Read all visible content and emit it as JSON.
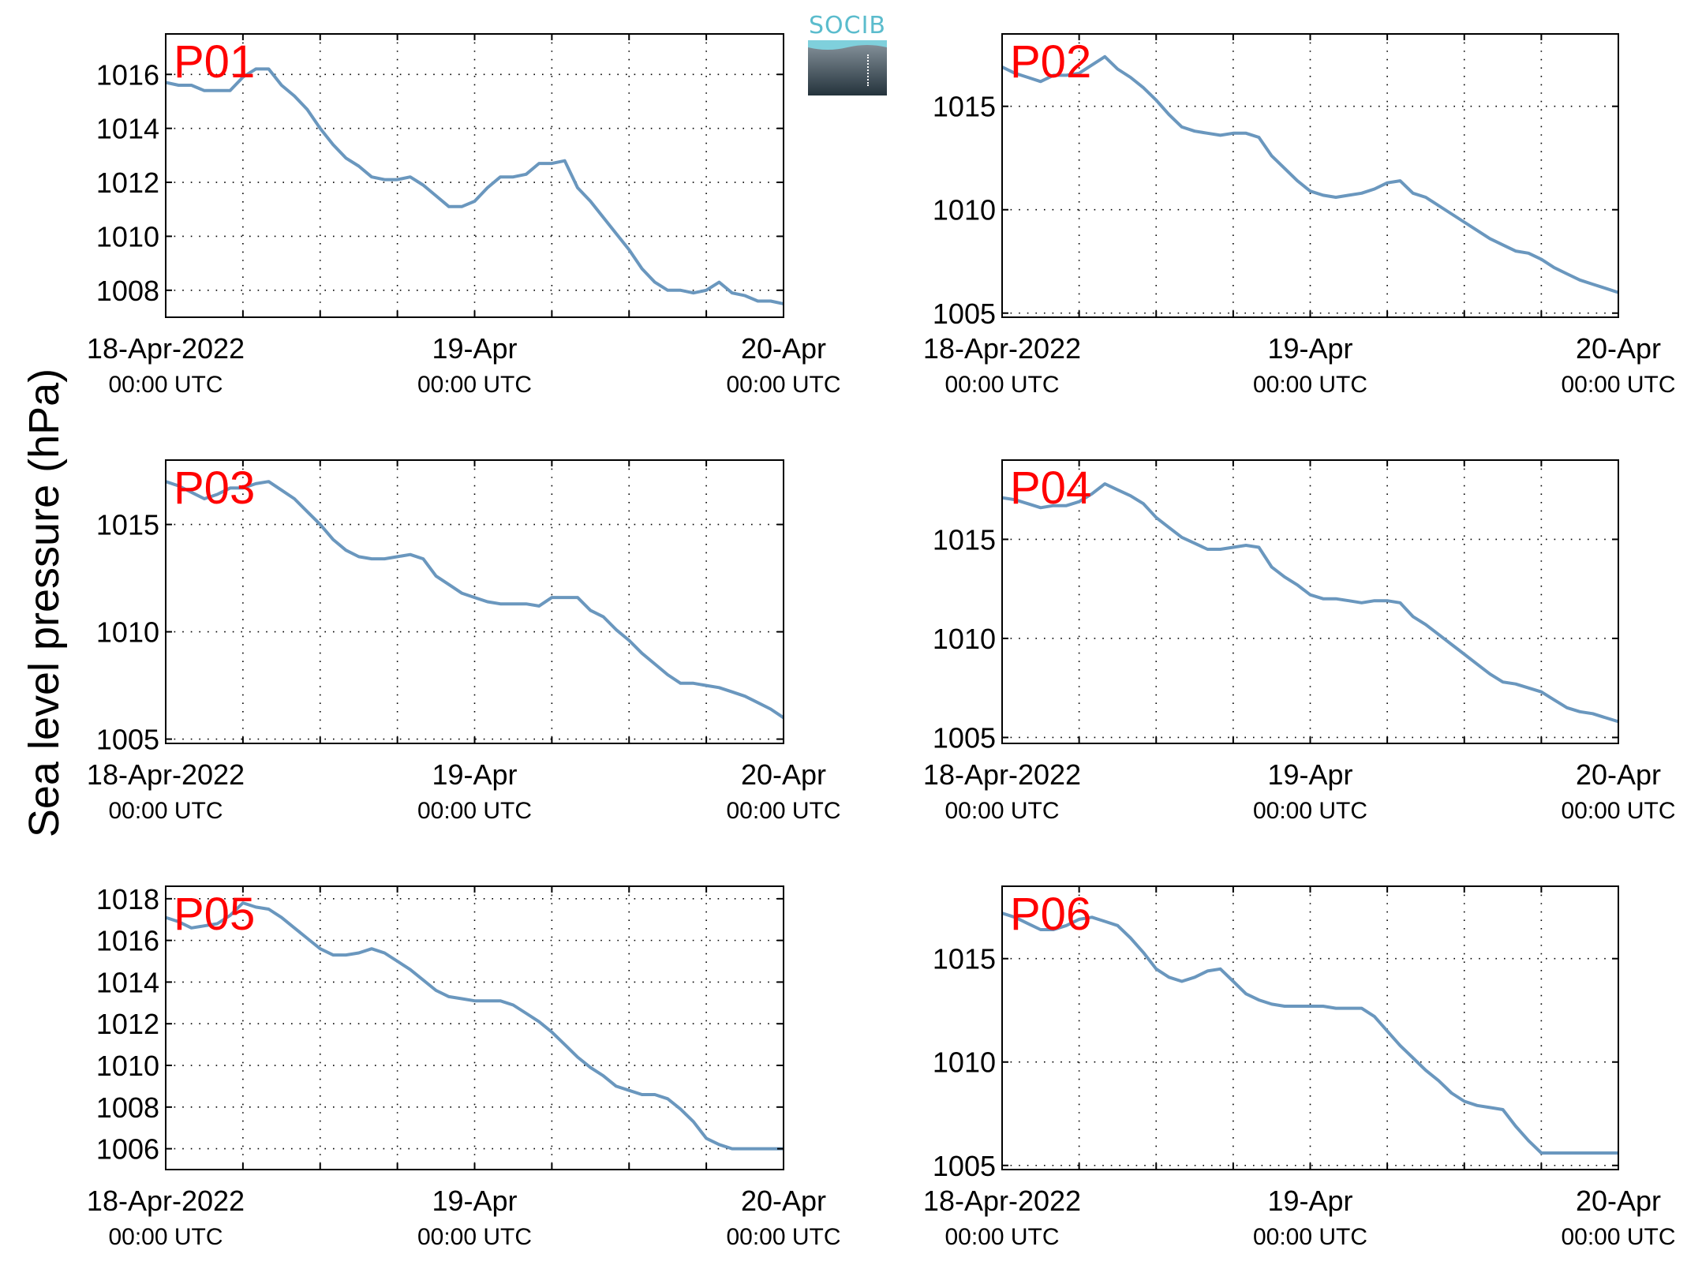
{
  "figure": {
    "ylabel": "Sea level pressure (hPa)",
    "logo_text": "SOCIB"
  },
  "colors": {
    "line": "#6a97be",
    "station_label": "#ff0000",
    "logo_text": "#5bbccd",
    "logo_wave": "#7fd0dc",
    "axis": "#000000",
    "grid": "#000000"
  },
  "chart_data": [
    {
      "type": "line",
      "label": "P01",
      "xlim": [
        0,
        48
      ],
      "ylim": [
        1007,
        1017.5
      ],
      "yticks": [
        1008,
        1010,
        1012,
        1014,
        1016
      ],
      "xticks": [
        {
          "t": 0,
          "line1": "18-Apr-2022",
          "line2": "00:00 UTC"
        },
        {
          "t": 24,
          "line1": "19-Apr",
          "line2": "00:00 UTC"
        },
        {
          "t": 48,
          "line1": "20-Apr",
          "line2": "00:00 UTC"
        }
      ],
      "x_unit": "hours since 18-Apr-2022 00:00 UTC",
      "grid": true,
      "x": [
        0,
        1,
        2,
        3,
        4,
        5,
        6,
        7,
        8,
        9,
        10,
        11,
        12,
        13,
        14,
        15,
        16,
        17,
        18,
        19,
        20,
        21,
        22,
        23,
        24,
        25,
        26,
        27,
        28,
        29,
        30,
        31,
        32,
        33,
        34,
        35,
        36,
        37,
        38,
        39,
        40,
        41,
        42,
        43,
        44,
        45,
        46,
        47,
        48
      ],
      "y": [
        1015.7,
        1015.6,
        1015.6,
        1015.4,
        1015.4,
        1015.4,
        1015.9,
        1016.2,
        1016.2,
        1015.6,
        1015.2,
        1014.7,
        1014,
        1013.4,
        1012.9,
        1012.6,
        1012.2,
        1012.1,
        1012.1,
        1012.2,
        1011.9,
        1011.5,
        1011.1,
        1011.1,
        1011.3,
        1011.8,
        1012.2,
        1012.2,
        1012.3,
        1012.7,
        1012.7,
        1012.8,
        1011.8,
        1011.3,
        1010.7,
        1010.1,
        1009.5,
        1008.8,
        1008.3,
        1008,
        1008,
        1007.9,
        1008,
        1008.3,
        1007.9,
        1007.8,
        1007.6,
        1007.6,
        1007.5
      ]
    },
    {
      "type": "line",
      "label": "P02",
      "xlim": [
        0,
        48
      ],
      "ylim": [
        1004.8,
        1018.5
      ],
      "yticks": [
        1005,
        1010,
        1015
      ],
      "xticks": [
        {
          "t": 0,
          "line1": "18-Apr-2022",
          "line2": "00:00 UTC"
        },
        {
          "t": 24,
          "line1": "19-Apr",
          "line2": "00:00 UTC"
        },
        {
          "t": 48,
          "line1": "20-Apr",
          "line2": "00:00 UTC"
        }
      ],
      "x_unit": "hours since 18-Apr-2022 00:00 UTC",
      "grid": true,
      "x": [
        0,
        1,
        2,
        3,
        4,
        5,
        6,
        7,
        8,
        9,
        10,
        11,
        12,
        13,
        14,
        15,
        16,
        17,
        18,
        19,
        20,
        21,
        22,
        23,
        24,
        25,
        26,
        27,
        28,
        29,
        30,
        31,
        32,
        33,
        34,
        35,
        36,
        37,
        38,
        39,
        40,
        41,
        42,
        43,
        44,
        45,
        46,
        47,
        48
      ],
      "y": [
        1016.9,
        1016.6,
        1016.4,
        1016.2,
        1016.5,
        1016.5,
        1016.6,
        1017,
        1017.4,
        1016.8,
        1016.4,
        1015.9,
        1015.3,
        1014.6,
        1014,
        1013.8,
        1013.7,
        1013.6,
        1013.7,
        1013.7,
        1013.5,
        1012.6,
        1012,
        1011.4,
        1010.9,
        1010.7,
        1010.6,
        1010.7,
        1010.8,
        1011,
        1011.3,
        1011.4,
        1010.8,
        1010.6,
        1010.2,
        1009.8,
        1009.4,
        1009,
        1008.6,
        1008.3,
        1008,
        1007.9,
        1007.6,
        1007.2,
        1006.9,
        1006.6,
        1006.4,
        1006.2,
        1006
      ]
    },
    {
      "type": "line",
      "label": "P03",
      "xlim": [
        0,
        48
      ],
      "ylim": [
        1004.8,
        1018
      ],
      "yticks": [
        1005,
        1010,
        1015
      ],
      "xticks": [
        {
          "t": 0,
          "line1": "18-Apr-2022",
          "line2": "00:00 UTC"
        },
        {
          "t": 24,
          "line1": "19-Apr",
          "line2": "00:00 UTC"
        },
        {
          "t": 48,
          "line1": "20-Apr",
          "line2": "00:00 UTC"
        }
      ],
      "x_unit": "hours since 18-Apr-2022 00:00 UTC",
      "grid": true,
      "x": [
        0,
        1,
        2,
        3,
        4,
        5,
        6,
        7,
        8,
        9,
        10,
        11,
        12,
        13,
        14,
        15,
        16,
        17,
        18,
        19,
        20,
        21,
        22,
        23,
        24,
        25,
        26,
        27,
        28,
        29,
        30,
        31,
        32,
        33,
        34,
        35,
        36,
        37,
        38,
        39,
        40,
        41,
        42,
        43,
        44,
        45,
        46,
        47,
        48
      ],
      "y": [
        1017,
        1016.8,
        1016.5,
        1016.2,
        1016.4,
        1016.7,
        1016.7,
        1016.9,
        1017,
        1016.6,
        1016.2,
        1015.6,
        1015,
        1014.3,
        1013.8,
        1013.5,
        1013.4,
        1013.4,
        1013.5,
        1013.6,
        1013.4,
        1012.6,
        1012.2,
        1011.8,
        1011.6,
        1011.4,
        1011.3,
        1011.3,
        1011.3,
        1011.2,
        1011.6,
        1011.6,
        1011.6,
        1011,
        1010.7,
        1010.1,
        1009.6,
        1009,
        1008.5,
        1008,
        1007.6,
        1007.6,
        1007.5,
        1007.4,
        1007.2,
        1007,
        1006.7,
        1006.4,
        1006
      ]
    },
    {
      "type": "line",
      "label": "P04",
      "xlim": [
        0,
        48
      ],
      "ylim": [
        1004.7,
        1019
      ],
      "yticks": [
        1005,
        1010,
        1015
      ],
      "xticks": [
        {
          "t": 0,
          "line1": "18-Apr-2022",
          "line2": "00:00 UTC"
        },
        {
          "t": 24,
          "line1": "19-Apr",
          "line2": "00:00 UTC"
        },
        {
          "t": 48,
          "line1": "20-Apr",
          "line2": "00:00 UTC"
        }
      ],
      "x_unit": "hours since 18-Apr-2022 00:00 UTC",
      "grid": true,
      "x": [
        0,
        1,
        2,
        3,
        4,
        5,
        6,
        7,
        8,
        9,
        10,
        11,
        12,
        13,
        14,
        15,
        16,
        17,
        18,
        19,
        20,
        21,
        22,
        23,
        24,
        25,
        26,
        27,
        28,
        29,
        30,
        31,
        32,
        33,
        34,
        35,
        36,
        37,
        38,
        39,
        40,
        41,
        42,
        43,
        44,
        45,
        46,
        47,
        48
      ],
      "y": [
        1017.1,
        1017,
        1016.8,
        1016.6,
        1016.7,
        1016.7,
        1016.9,
        1017.3,
        1017.8,
        1017.5,
        1017.2,
        1016.8,
        1016.1,
        1015.6,
        1015.1,
        1014.8,
        1014.5,
        1014.5,
        1014.6,
        1014.7,
        1014.6,
        1013.6,
        1013.1,
        1012.7,
        1012.2,
        1012,
        1012,
        1011.9,
        1011.8,
        1011.9,
        1011.9,
        1011.8,
        1011.1,
        1010.7,
        1010.2,
        1009.7,
        1009.2,
        1008.7,
        1008.2,
        1007.8,
        1007.7,
        1007.5,
        1007.3,
        1006.9,
        1006.5,
        1006.3,
        1006.2,
        1006,
        1005.8
      ]
    },
    {
      "type": "line",
      "label": "P05",
      "xlim": [
        0,
        48
      ],
      "ylim": [
        1005,
        1018.6
      ],
      "yticks": [
        1006,
        1008,
        1010,
        1012,
        1014,
        1016,
        1018
      ],
      "xticks": [
        {
          "t": 0,
          "line1": "18-Apr-2022",
          "line2": "00:00 UTC"
        },
        {
          "t": 24,
          "line1": "19-Apr",
          "line2": "00:00 UTC"
        },
        {
          "t": 48,
          "line1": "20-Apr",
          "line2": "00:00 UTC"
        }
      ],
      "x_unit": "hours since 18-Apr-2022 00:00 UTC",
      "grid": true,
      "x": [
        0,
        1,
        2,
        3,
        4,
        5,
        6,
        7,
        8,
        9,
        10,
        11,
        12,
        13,
        14,
        15,
        16,
        17,
        18,
        19,
        20,
        21,
        22,
        23,
        24,
        25,
        26,
        27,
        28,
        29,
        30,
        31,
        32,
        33,
        34,
        35,
        36,
        37,
        38,
        39,
        40,
        41,
        42,
        43,
        44,
        45,
        46,
        47,
        48
      ],
      "y": [
        1017.1,
        1016.9,
        1016.6,
        1016.7,
        1016.8,
        1017.2,
        1017.8,
        1017.6,
        1017.5,
        1017.1,
        1016.6,
        1016.1,
        1015.6,
        1015.3,
        1015.3,
        1015.4,
        1015.6,
        1015.4,
        1015,
        1014.6,
        1014.1,
        1013.6,
        1013.3,
        1013.2,
        1013.1,
        1013.1,
        1013.1,
        1012.9,
        1012.5,
        1012.1,
        1011.6,
        1011,
        1010.4,
        1009.9,
        1009.5,
        1009,
        1008.8,
        1008.6,
        1008.6,
        1008.4,
        1007.9,
        1007.3,
        1006.5,
        1006.2,
        1006,
        1006,
        1006,
        1006,
        1006
      ]
    },
    {
      "type": "line",
      "label": "P06",
      "xlim": [
        0,
        48
      ],
      "ylim": [
        1004.8,
        1018.5
      ],
      "yticks": [
        1005,
        1010,
        1015
      ],
      "xticks": [
        {
          "t": 0,
          "line1": "18-Apr-2022",
          "line2": "00:00 UTC"
        },
        {
          "t": 24,
          "line1": "19-Apr",
          "line2": "00:00 UTC"
        },
        {
          "t": 48,
          "line1": "20-Apr",
          "line2": "00:00 UTC"
        }
      ],
      "x_unit": "hours since 18-Apr-2022 00:00 UTC",
      "grid": true,
      "x": [
        0,
        1,
        2,
        3,
        4,
        5,
        6,
        7,
        8,
        9,
        10,
        11,
        12,
        13,
        14,
        15,
        16,
        17,
        18,
        19,
        20,
        21,
        22,
        23,
        24,
        25,
        26,
        27,
        28,
        29,
        30,
        31,
        32,
        33,
        34,
        35,
        36,
        37,
        38,
        39,
        40,
        41,
        42,
        43,
        44,
        45,
        46,
        47,
        48
      ],
      "y": [
        1017.2,
        1017,
        1016.7,
        1016.4,
        1016.4,
        1016.6,
        1016.9,
        1017,
        1016.8,
        1016.6,
        1016,
        1015.3,
        1014.5,
        1014.1,
        1013.9,
        1014.1,
        1014.4,
        1014.5,
        1013.9,
        1013.3,
        1013,
        1012.8,
        1012.7,
        1012.7,
        1012.7,
        1012.7,
        1012.6,
        1012.6,
        1012.6,
        1012.2,
        1011.5,
        1010.8,
        1010.2,
        1009.6,
        1009.1,
        1008.5,
        1008.1,
        1007.9,
        1007.8,
        1007.7,
        1006.9,
        1006.2,
        1005.6,
        1005.6,
        1005.6,
        1005.6,
        1005.6,
        1005.6,
        1005.6
      ]
    }
  ]
}
